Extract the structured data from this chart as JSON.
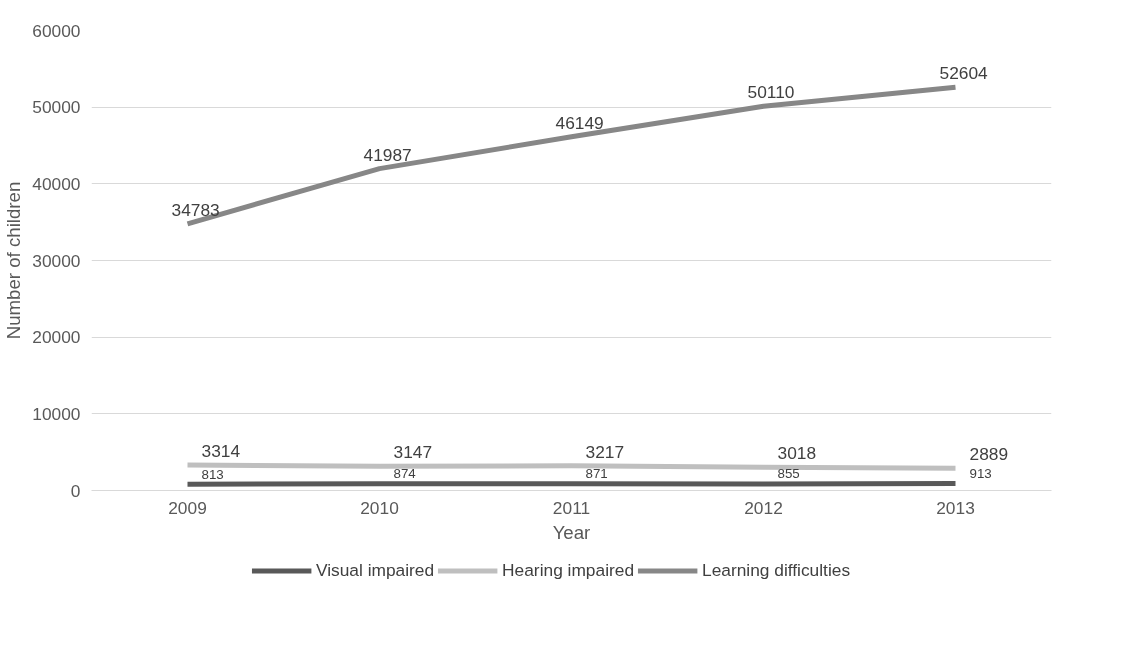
{
  "chart_data": {
    "type": "line",
    "xlabel": "Year",
    "ylabel": "Number of children",
    "categories": [
      "2009",
      "2010",
      "2011",
      "2012",
      "2013"
    ],
    "series": [
      {
        "name": "Visual impaired",
        "color": "#595959",
        "values": [
          813,
          874,
          871,
          855,
          913
        ]
      },
      {
        "name": "Hearing impaired",
        "color": "#bfbfbf",
        "values": [
          3314,
          3147,
          3217,
          3018,
          2889
        ]
      },
      {
        "name": "Learning difficulties",
        "color": "#878787",
        "values": [
          34783,
          41987,
          46149,
          50110,
          52604
        ]
      }
    ],
    "ylim": [
      0,
      60000
    ],
    "yticks": [
      0,
      10000,
      20000,
      30000,
      40000,
      50000,
      60000
    ],
    "grid": "y",
    "legend": "bottom",
    "data_labels": true,
    "marker": "none",
    "line_style": "solid"
  }
}
